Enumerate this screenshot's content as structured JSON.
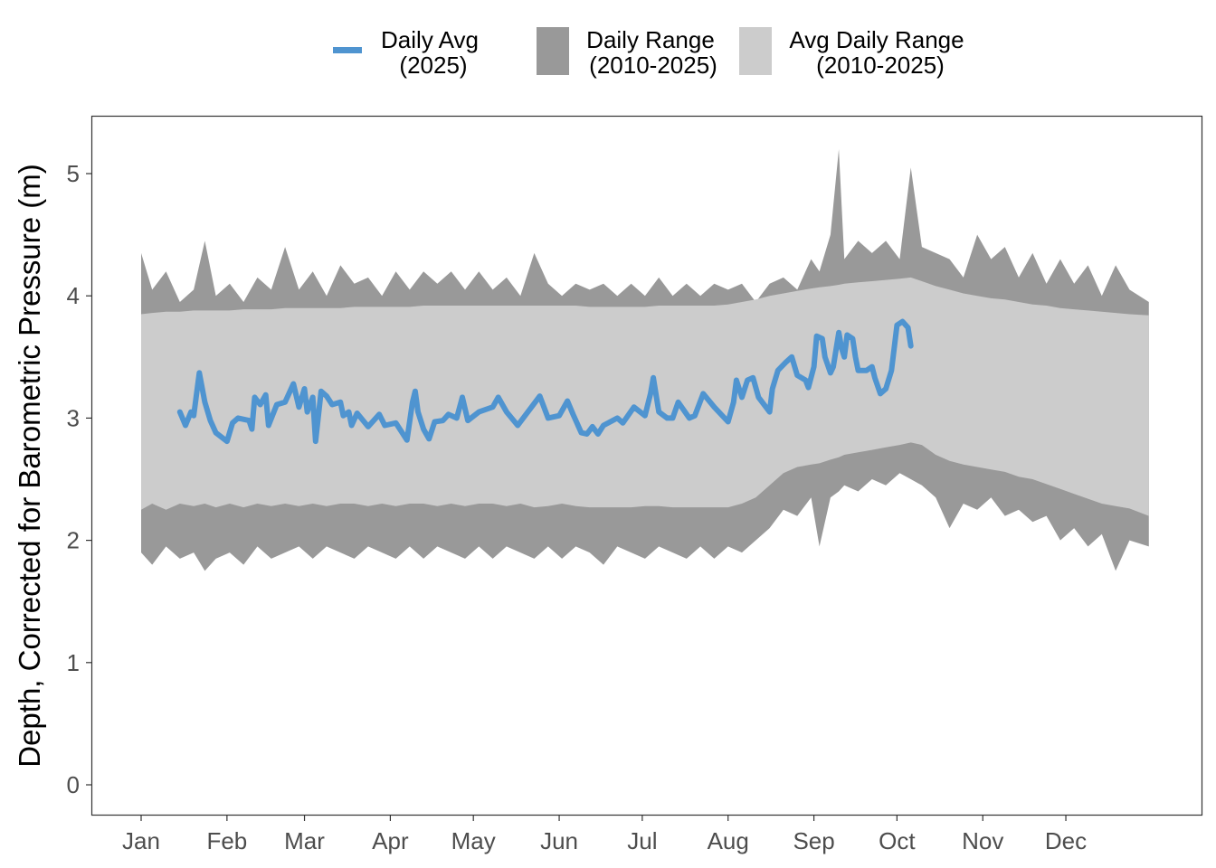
{
  "chart_data": {
    "type": "area",
    "xlabel": "",
    "ylabel": "Depth, Corrected for Barometric Pressure (m)",
    "ylim": [
      -0.25,
      5.4
    ],
    "xlim_day_of_year": [
      -17,
      384
    ],
    "y_ticks": [
      0,
      1,
      2,
      3,
      4,
      5
    ],
    "x_ticks": [
      {
        "label": "Jan",
        "day": 1
      },
      {
        "label": "Feb",
        "day": 32
      },
      {
        "label": "Mar",
        "day": 60
      },
      {
        "label": "Apr",
        "day": 91
      },
      {
        "label": "May",
        "day": 121
      },
      {
        "label": "Jun",
        "day": 152
      },
      {
        "label": "Jul",
        "day": 182
      },
      {
        "label": "Aug",
        "day": 213
      },
      {
        "label": "Sep",
        "day": 244
      },
      {
        "label": "Oct",
        "day": 274
      },
      {
        "label": "Nov",
        "day": 305
      },
      {
        "label": "Dec",
        "day": 335
      }
    ],
    "legend": {
      "placement": "top",
      "entries": [
        {
          "line1": "Daily Avg",
          "line2": "(2025)",
          "color": "#4F94D0",
          "kind": "line"
        },
        {
          "line1": "Daily Range",
          "line2": "(2010-2025)",
          "color": "#999999",
          "kind": "fill"
        },
        {
          "line1": "Avg Daily Range",
          "line2": "(2010-2025)",
          "color": "#CCCCCC",
          "kind": "fill"
        }
      ]
    },
    "bands_columns": [
      "day",
      "range_max",
      "avg_range_max",
      "avg_range_min",
      "range_min"
    ],
    "bands": [
      [
        1,
        4.35,
        3.85,
        2.25,
        1.9
      ],
      [
        5,
        4.05,
        3.86,
        2.3,
        1.8
      ],
      [
        10,
        4.2,
        3.87,
        2.25,
        1.95
      ],
      [
        15,
        3.95,
        3.87,
        2.3,
        1.85
      ],
      [
        20,
        4.05,
        3.88,
        2.28,
        1.9
      ],
      [
        24,
        4.45,
        3.88,
        2.3,
        1.75
      ],
      [
        28,
        4.0,
        3.88,
        2.27,
        1.85
      ],
      [
        33,
        4.1,
        3.88,
        2.3,
        1.9
      ],
      [
        38,
        3.95,
        3.89,
        2.27,
        1.8
      ],
      [
        43,
        4.15,
        3.89,
        2.3,
        1.95
      ],
      [
        48,
        4.05,
        3.89,
        2.28,
        1.85
      ],
      [
        53,
        4.4,
        3.9,
        2.3,
        1.9
      ],
      [
        58,
        4.05,
        3.9,
        2.28,
        1.95
      ],
      [
        63,
        4.2,
        3.9,
        2.3,
        1.85
      ],
      [
        68,
        4.0,
        3.9,
        2.28,
        1.95
      ],
      [
        73,
        4.25,
        3.9,
        2.3,
        1.9
      ],
      [
        78,
        4.1,
        3.91,
        2.3,
        1.85
      ],
      [
        83,
        4.15,
        3.91,
        2.28,
        1.95
      ],
      [
        88,
        4.0,
        3.91,
        2.3,
        1.9
      ],
      [
        93,
        4.2,
        3.91,
        2.28,
        1.85
      ],
      [
        98,
        4.05,
        3.91,
        2.3,
        1.95
      ],
      [
        103,
        4.2,
        3.92,
        2.3,
        1.85
      ],
      [
        108,
        4.1,
        3.92,
        2.28,
        1.95
      ],
      [
        113,
        4.2,
        3.92,
        2.3,
        1.9
      ],
      [
        118,
        4.05,
        3.92,
        2.28,
        1.85
      ],
      [
        123,
        4.2,
        3.92,
        2.3,
        1.95
      ],
      [
        128,
        4.05,
        3.92,
        2.3,
        1.85
      ],
      [
        133,
        4.15,
        3.92,
        2.28,
        1.95
      ],
      [
        138,
        4.0,
        3.92,
        2.3,
        1.9
      ],
      [
        143,
        4.35,
        3.92,
        2.27,
        1.85
      ],
      [
        148,
        4.1,
        3.92,
        2.28,
        1.95
      ],
      [
        153,
        4.0,
        3.92,
        2.3,
        1.85
      ],
      [
        158,
        4.1,
        3.92,
        2.28,
        1.95
      ],
      [
        163,
        4.05,
        3.91,
        2.27,
        1.9
      ],
      [
        168,
        4.1,
        3.91,
        2.27,
        1.8
      ],
      [
        173,
        4.0,
        3.91,
        2.27,
        1.95
      ],
      [
        178,
        4.1,
        3.91,
        2.27,
        1.9
      ],
      [
        183,
        4.0,
        3.91,
        2.28,
        1.85
      ],
      [
        188,
        4.15,
        3.92,
        2.28,
        1.95
      ],
      [
        193,
        4.0,
        3.92,
        2.27,
        1.9
      ],
      [
        198,
        4.1,
        3.92,
        2.27,
        1.85
      ],
      [
        203,
        4.0,
        3.92,
        2.27,
        1.95
      ],
      [
        208,
        4.1,
        3.92,
        2.27,
        1.85
      ],
      [
        213,
        4.05,
        3.93,
        2.27,
        1.95
      ],
      [
        218,
        4.1,
        3.95,
        2.3,
        1.9
      ],
      [
        223,
        3.95,
        3.97,
        2.35,
        2.0
      ],
      [
        228,
        4.1,
        4.0,
        2.45,
        2.1
      ],
      [
        233,
        4.15,
        4.02,
        2.55,
        2.25
      ],
      [
        238,
        4.05,
        4.04,
        2.6,
        2.2
      ],
      [
        243,
        4.3,
        4.06,
        2.62,
        2.35
      ],
      [
        246,
        4.2,
        4.07,
        2.63,
        1.95
      ],
      [
        250,
        4.5,
        4.08,
        2.66,
        2.35
      ],
      [
        253,
        5.2,
        4.09,
        2.68,
        2.4
      ],
      [
        255,
        4.3,
        4.1,
        2.7,
        2.45
      ],
      [
        260,
        4.45,
        4.11,
        2.72,
        2.4
      ],
      [
        265,
        4.35,
        4.12,
        2.74,
        2.5
      ],
      [
        270,
        4.45,
        4.13,
        2.76,
        2.45
      ],
      [
        275,
        4.3,
        4.14,
        2.78,
        2.55
      ],
      [
        279,
        5.05,
        4.15,
        2.8,
        2.5
      ],
      [
        283,
        4.4,
        4.12,
        2.78,
        2.45
      ],
      [
        288,
        4.35,
        4.08,
        2.7,
        2.35
      ],
      [
        293,
        4.3,
        4.05,
        2.65,
        2.1
      ],
      [
        298,
        4.15,
        4.02,
        2.62,
        2.3
      ],
      [
        303,
        4.5,
        4.0,
        2.6,
        2.25
      ],
      [
        308,
        4.3,
        3.98,
        2.58,
        2.35
      ],
      [
        313,
        4.4,
        3.97,
        2.56,
        2.2
      ],
      [
        318,
        4.15,
        3.95,
        2.52,
        2.25
      ],
      [
        323,
        4.35,
        3.93,
        2.5,
        2.15
      ],
      [
        328,
        4.1,
        3.92,
        2.46,
        2.2
      ],
      [
        333,
        4.3,
        3.9,
        2.42,
        2.0
      ],
      [
        338,
        4.1,
        3.89,
        2.38,
        2.1
      ],
      [
        343,
        4.25,
        3.88,
        2.34,
        1.95
      ],
      [
        348,
        4.0,
        3.87,
        2.3,
        2.05
      ],
      [
        353,
        4.25,
        3.86,
        2.28,
        1.75
      ],
      [
        358,
        4.05,
        3.85,
        2.26,
        2.0
      ],
      [
        365,
        3.95,
        3.84,
        2.2,
        1.95
      ]
    ],
    "daily_avg_2025": [
      [
        15,
        3.05
      ],
      [
        17,
        2.94
      ],
      [
        19,
        3.05
      ],
      [
        20,
        3.02
      ],
      [
        22,
        3.37
      ],
      [
        24,
        3.13
      ],
      [
        26,
        2.98
      ],
      [
        28,
        2.88
      ],
      [
        32,
        2.81
      ],
      [
        34,
        2.96
      ],
      [
        36,
        3.0
      ],
      [
        40,
        2.98
      ],
      [
        41,
        2.91
      ],
      [
        42,
        3.17
      ],
      [
        44,
        3.11
      ],
      [
        46,
        3.19
      ],
      [
        47,
        2.94
      ],
      [
        50,
        3.11
      ],
      [
        53,
        3.13
      ],
      [
        56,
        3.28
      ],
      [
        58,
        3.09
      ],
      [
        60,
        3.24
      ],
      [
        61,
        3.05
      ],
      [
        63,
        3.17
      ],
      [
        64,
        2.81
      ],
      [
        66,
        3.22
      ],
      [
        68,
        3.18
      ],
      [
        70,
        3.11
      ],
      [
        73,
        3.13
      ],
      [
        74,
        3.02
      ],
      [
        76,
        3.05
      ],
      [
        77,
        2.94
      ],
      [
        79,
        3.04
      ],
      [
        83,
        2.93
      ],
      [
        87,
        3.03
      ],
      [
        89,
        2.94
      ],
      [
        93,
        2.96
      ],
      [
        97,
        2.82
      ],
      [
        99,
        3.13
      ],
      [
        100,
        3.22
      ],
      [
        101,
        3.05
      ],
      [
        103,
        2.91
      ],
      [
        105,
        2.83
      ],
      [
        107,
        2.97
      ],
      [
        110,
        2.98
      ],
      [
        112,
        3.03
      ],
      [
        115,
        3.0
      ],
      [
        117,
        3.17
      ],
      [
        119,
        2.98
      ],
      [
        123,
        3.05
      ],
      [
        128,
        3.09
      ],
      [
        130,
        3.17
      ],
      [
        133,
        3.05
      ],
      [
        137,
        2.94
      ],
      [
        142,
        3.09
      ],
      [
        145,
        3.18
      ],
      [
        148,
        3.0
      ],
      [
        152,
        3.02
      ],
      [
        155,
        3.14
      ],
      [
        157,
        3.03
      ],
      [
        160,
        2.88
      ],
      [
        162,
        2.87
      ],
      [
        164,
        2.93
      ],
      [
        166,
        2.87
      ],
      [
        168,
        2.94
      ],
      [
        173,
        3.0
      ],
      [
        175,
        2.96
      ],
      [
        179,
        3.09
      ],
      [
        183,
        3.02
      ],
      [
        185,
        3.2
      ],
      [
        186,
        3.33
      ],
      [
        188,
        3.05
      ],
      [
        191,
        3.0
      ],
      [
        193,
        3.0
      ],
      [
        195,
        3.13
      ],
      [
        199,
        3.0
      ],
      [
        201,
        3.02
      ],
      [
        204,
        3.2
      ],
      [
        208,
        3.09
      ],
      [
        213,
        2.97
      ],
      [
        215,
        3.13
      ],
      [
        216,
        3.31
      ],
      [
        218,
        3.17
      ],
      [
        220,
        3.31
      ],
      [
        222,
        3.33
      ],
      [
        224,
        3.17
      ],
      [
        228,
        3.05
      ],
      [
        229,
        3.24
      ],
      [
        231,
        3.39
      ],
      [
        234,
        3.46
      ],
      [
        236,
        3.5
      ],
      [
        238,
        3.35
      ],
      [
        241,
        3.31
      ],
      [
        242,
        3.25
      ],
      [
        244,
        3.42
      ],
      [
        245,
        3.67
      ],
      [
        247,
        3.65
      ],
      [
        248,
        3.5
      ],
      [
        250,
        3.37
      ],
      [
        251,
        3.42
      ],
      [
        253,
        3.7
      ],
      [
        254,
        3.57
      ],
      [
        255,
        3.5
      ],
      [
        256,
        3.68
      ],
      [
        258,
        3.65
      ],
      [
        259,
        3.5
      ],
      [
        260,
        3.39
      ],
      [
        263,
        3.39
      ],
      [
        265,
        3.42
      ],
      [
        266,
        3.33
      ],
      [
        268,
        3.2
      ],
      [
        270,
        3.24
      ],
      [
        272,
        3.39
      ],
      [
        273,
        3.57
      ],
      [
        274,
        3.76
      ],
      [
        276,
        3.79
      ],
      [
        278,
        3.74
      ],
      [
        279,
        3.59
      ]
    ]
  }
}
